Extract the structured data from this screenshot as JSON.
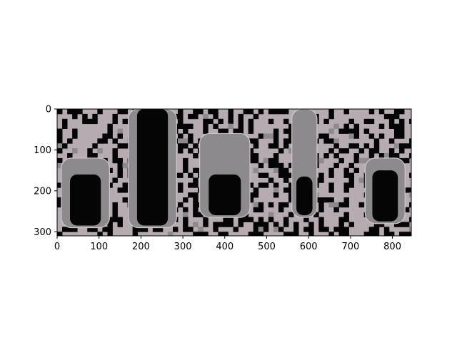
{
  "chart_data": {
    "type": "heatmap",
    "title": "",
    "xlabel": "",
    "ylabel": "",
    "image_size": {
      "width": 845,
      "height": 310
    },
    "xlim": [
      0,
      845
    ],
    "ylim": [
      310,
      0
    ],
    "y_axis_inverted": true,
    "grid": false,
    "xticks": [
      0,
      100,
      200,
      300,
      400,
      500,
      600,
      700,
      800
    ],
    "xtick_labels": [
      "0",
      "100",
      "200",
      "300",
      "400",
      "500",
      "600",
      "700",
      "800"
    ],
    "yticks": [
      0,
      100,
      200,
      300
    ],
    "ytick_labels": [
      "0",
      "100",
      "200",
      "300"
    ],
    "colormap": "gray",
    "tubes": [
      {
        "x_left": 10,
        "x_right": 125,
        "y_top": 120,
        "y_bottom": 290,
        "fill_top": 160
      },
      {
        "x_left": 170,
        "x_right": 285,
        "y_top": 0,
        "y_bottom": 290,
        "fill_top": 0
      },
      {
        "x_left": 340,
        "x_right": 460,
        "y_top": 60,
        "y_bottom": 265,
        "fill_top": 160
      },
      {
        "x_left": 560,
        "x_right": 620,
        "y_top": 0,
        "y_bottom": 265,
        "fill_top": 165
      },
      {
        "x_left": 735,
        "x_right": 830,
        "y_top": 120,
        "y_bottom": 280,
        "fill_top": 150
      }
    ],
    "colors": {
      "light": "#b5abb1",
      "mid": "#8d8a8d",
      "dark": "#050505",
      "edge": "#cfc7cc"
    }
  }
}
